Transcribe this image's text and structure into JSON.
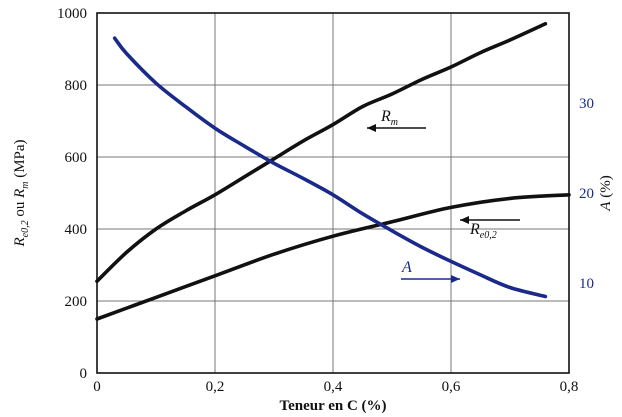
{
  "chart_data": {
    "type": "line",
    "xlabel": "Teneur en C (%)",
    "ylabel_left": {
      "main1": "R",
      "sub1": "e0,2",
      "mid": " ou ",
      "main2": "R",
      "sub2": "m",
      "unit": " (MPa)"
    },
    "ylabel_right": {
      "main": "A",
      "unit": " (%)"
    },
    "xlim": [
      0,
      0.8
    ],
    "ylim_left": [
      0,
      1000
    ],
    "ylim_right": [
      0,
      40
    ],
    "grid": true,
    "x_ticks": [
      "0",
      "0,2",
      "0,4",
      "0,6",
      "0,8"
    ],
    "y_left_ticks": [
      "0",
      "200",
      "400",
      "600",
      "800",
      "1000"
    ],
    "y_right_ticks": [
      "10",
      "20",
      "30"
    ],
    "series": [
      {
        "name": "Rm",
        "axis": "left",
        "color": "#111111",
        "x": [
          0,
          0.05,
          0.1,
          0.15,
          0.2,
          0.25,
          0.3,
          0.35,
          0.4,
          0.45,
          0.5,
          0.55,
          0.6,
          0.65,
          0.7,
          0.76
        ],
        "y": [
          255,
          335,
          400,
          450,
          495,
          545,
          595,
          645,
          690,
          740,
          775,
          815,
          850,
          890,
          925,
          970
        ]
      },
      {
        "name": "Re0,2",
        "axis": "left",
        "color": "#111111",
        "x": [
          0,
          0.1,
          0.2,
          0.3,
          0.4,
          0.5,
          0.6,
          0.7,
          0.8
        ],
        "y": [
          150,
          210,
          270,
          330,
          380,
          420,
          460,
          485,
          495
        ]
      },
      {
        "name": "A",
        "axis": "right",
        "color": "#1a2a8a",
        "x": [
          0.03,
          0.05,
          0.1,
          0.15,
          0.2,
          0.25,
          0.3,
          0.35,
          0.4,
          0.45,
          0.5,
          0.55,
          0.6,
          0.65,
          0.7,
          0.76
        ],
        "y": [
          37.2,
          35.5,
          32.2,
          29.6,
          27.2,
          25.2,
          23.3,
          21.6,
          19.8,
          17.7,
          15.8,
          14.0,
          12.4,
          10.9,
          9.5,
          8.5
        ]
      }
    ],
    "annotations": [
      {
        "label": "R",
        "sub": "m",
        "color": "#111111"
      },
      {
        "label": "R",
        "sub": "e0,2",
        "color": "#111111"
      },
      {
        "label": "A",
        "sub": "",
        "color": "#1a2a8a"
      }
    ]
  }
}
